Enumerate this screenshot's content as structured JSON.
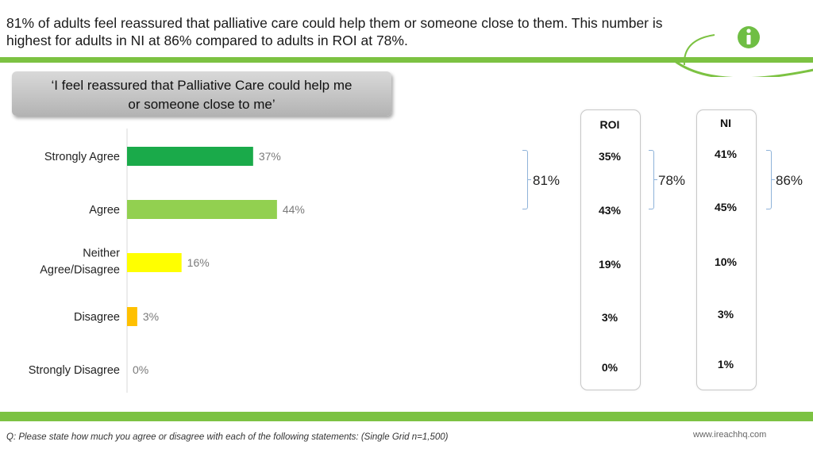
{
  "headline": "81% of adults feel reassured that palliative care could help them or someone close to them. This number is highest for adults in NI at 86% compared to adults in ROI at 78%.",
  "statement": "‘I feel reassured that Palliative Care could help me or someone close to me’",
  "colors": {
    "accent_green": "#7cc242",
    "logo_green": "#6fbe44"
  },
  "logo_icon": "info-icon",
  "chart_data": {
    "type": "bar",
    "orientation": "horizontal",
    "categories": [
      "Strongly Agree",
      "Agree",
      "Neither Agree/Disagree",
      "Disagree",
      "Strongly Disagree"
    ],
    "category_lines": [
      [
        "Strongly Agree"
      ],
      [
        "Agree"
      ],
      [
        "Neither",
        "Agree/Disagree"
      ],
      [
        "Disagree"
      ],
      [
        "Strongly Disagree"
      ]
    ],
    "values": [
      37,
      44,
      16,
      3,
      0
    ],
    "value_labels": [
      "37%",
      "44%",
      "16%",
      "3%",
      "0%"
    ],
    "colors": [
      "#1aaa4a",
      "#92d050",
      "#ffff00",
      "#ffc000",
      "#d0d0d0"
    ],
    "xlim": [
      0,
      100
    ],
    "total_net_label": "81%",
    "comparison": [
      {
        "name": "ROI",
        "values": [
          "35%",
          "43%",
          "19%",
          "3%",
          "0%"
        ],
        "net": "78%"
      },
      {
        "name": "NI",
        "values": [
          "41%",
          "45%",
          "10%",
          "3%",
          "1%"
        ],
        "net": "86%"
      }
    ]
  },
  "footnote": "Q: Please state how much you agree or disagree with each of the following statements: (Single Grid n=1,500)",
  "website": "www.ireachhq.com"
}
